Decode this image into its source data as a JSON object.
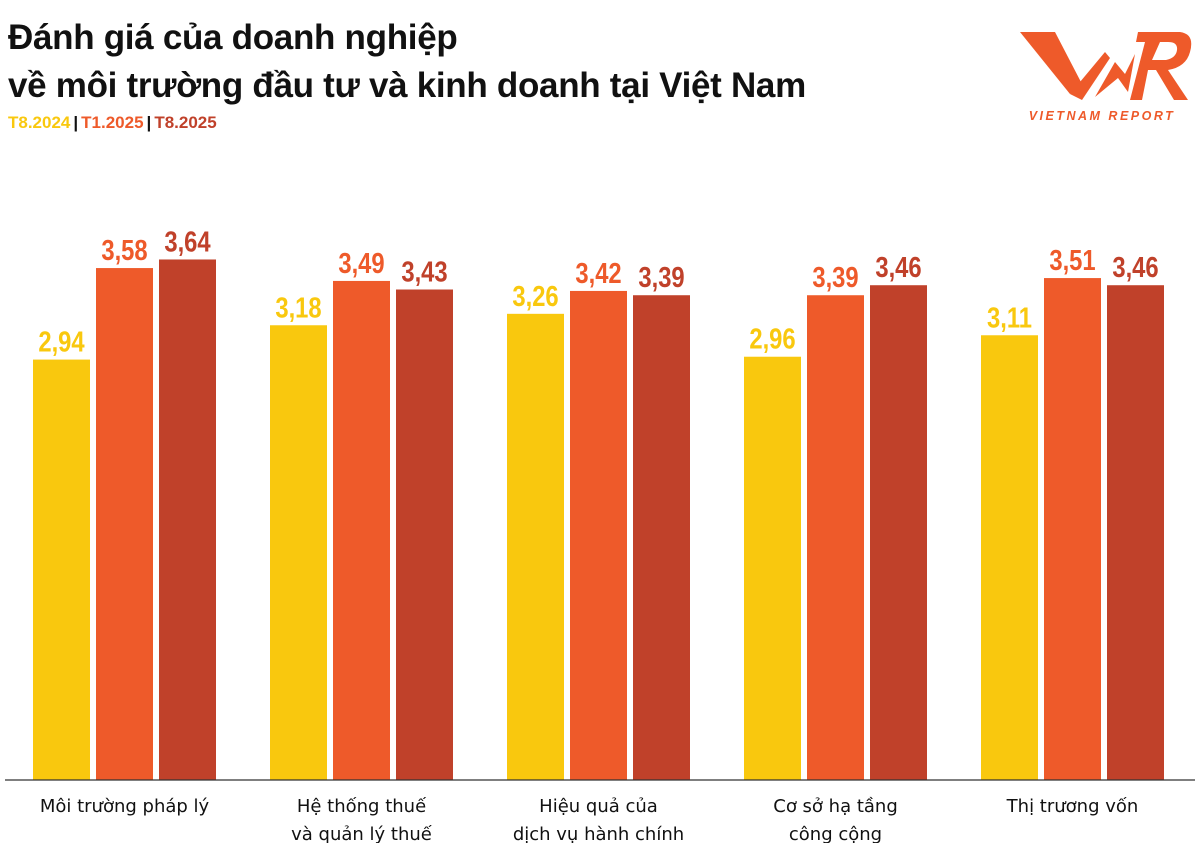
{
  "header": {
    "title_line1": "Đánh giá của doanh nghiệp",
    "title_line2": "về môi trường đầu tư và kinh doanh tại Việt Nam"
  },
  "logo": {
    "mark": "VNR",
    "text": "VIETNAM REPORT",
    "color": "#EE5A2A"
  },
  "chart_data": {
    "type": "bar",
    "categories": [
      [
        "Môi trường pháp lý"
      ],
      [
        "Hệ thống thuế",
        "và quản lý thuế"
      ],
      [
        "Hiệu quả của",
        "dịch vụ hành chính"
      ],
      [
        "Cơ sở hạ tầng",
        "công cộng"
      ],
      [
        "Thị trương vốn"
      ]
    ],
    "series": [
      {
        "name": "T8.2024",
        "color": "#F9C80E",
        "values": [
          2.94,
          3.18,
          3.26,
          2.96,
          3.11
        ],
        "labels": [
          "2,94",
          "3,18",
          "3,26",
          "2,96",
          "3,11"
        ]
      },
      {
        "name": "T1.2025",
        "color": "#EE5A2A",
        "values": [
          3.58,
          3.49,
          3.42,
          3.39,
          3.51
        ],
        "labels": [
          "3,58",
          "3,49",
          "3,42",
          "3,39",
          "3,51"
        ]
      },
      {
        "name": "T8.2025",
        "color": "#C0412A",
        "values": [
          3.64,
          3.43,
          3.39,
          3.46,
          3.46
        ],
        "labels": [
          "3,64",
          "3,43",
          "3,39",
          "3,46",
          "3,46"
        ]
      }
    ],
    "ylim": [
      0,
      3.64
    ],
    "grid": false,
    "legend": "top-left"
  }
}
